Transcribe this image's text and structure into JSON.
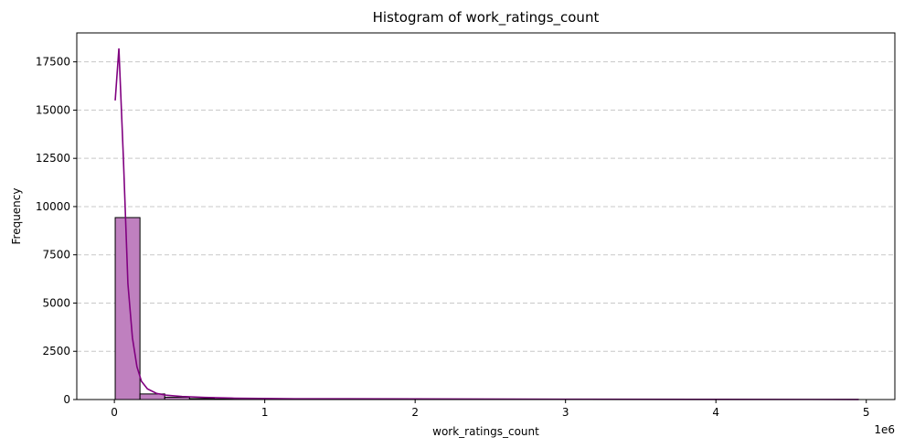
{
  "chart_data": {
    "type": "bar",
    "title": "Histogram of work_ratings_count",
    "xlabel": "work_ratings_count",
    "ylabel": "Frequency",
    "x_offset_label": "1e6",
    "xlim": [
      -250000,
      5190000
    ],
    "ylim": [
      0,
      19000
    ],
    "x_ticks": [
      0,
      1000000,
      2000000,
      3000000,
      4000000,
      5000000
    ],
    "x_tick_labels": [
      "0",
      "1",
      "2",
      "3",
      "4",
      "5"
    ],
    "y_ticks": [
      0,
      2500,
      5000,
      7500,
      10000,
      12500,
      15000,
      17500
    ],
    "y_tick_labels": [
      "0",
      "2500",
      "5000",
      "7500",
      "10000",
      "12500",
      "15000",
      "17500"
    ],
    "grid": "y-dashed",
    "bin_width": 164745,
    "bin_start": 5510,
    "values": [
      9430,
      290,
      120,
      50,
      30,
      20,
      15,
      12,
      10,
      8,
      6,
      5,
      4,
      3,
      3,
      2,
      2,
      1,
      1,
      1,
      1,
      1,
      1,
      0,
      0,
      0,
      0,
      0,
      0,
      1
    ],
    "kde": {
      "x": [
        5510,
        30000,
        60000,
        90000,
        120000,
        150000,
        180000,
        220000,
        280000,
        350000,
        450000,
        600000,
        800000,
        1200000,
        2000000,
        3000000,
        4000000,
        4950000
      ],
      "y": [
        15500,
        18200,
        12500,
        6000,
        3200,
        1700,
        950,
        550,
        320,
        220,
        160,
        110,
        70,
        40,
        35,
        15,
        8,
        5
      ]
    },
    "colors": {
      "bar_fill": "#bf80bf",
      "bar_edge": "#000000",
      "kde_line": "#800080",
      "grid": "#c8c8c8"
    }
  }
}
